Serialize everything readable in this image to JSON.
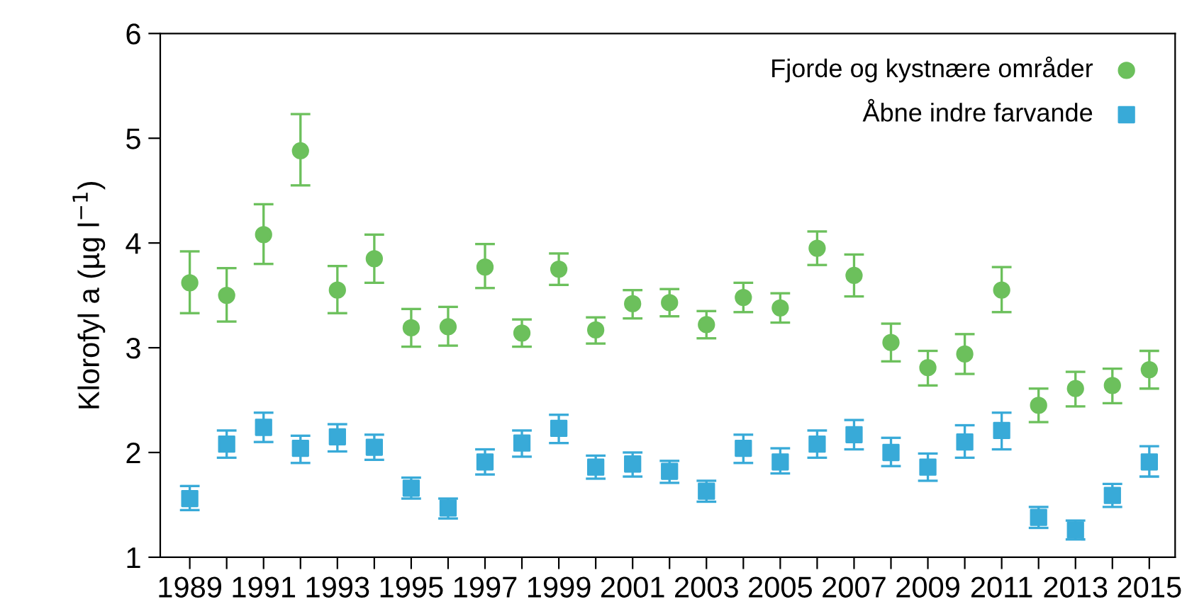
{
  "chart_data": {
    "type": "scatter",
    "ylabel": "Klorofyl a (µg l$^{−1}$)",
    "x": [
      1989,
      1990,
      1991,
      1992,
      1993,
      1994,
      1995,
      1996,
      1997,
      1998,
      1999,
      2000,
      2001,
      2002,
      2003,
      2004,
      2005,
      2006,
      2007,
      2008,
      2009,
      2010,
      2011,
      2012,
      2013,
      2014,
      2015
    ],
    "xlim": [
      1988.2,
      2015.7
    ],
    "xticks": [
      1989,
      {
        "value": 1990,
        "label": null
      },
      1991,
      {
        "value": 1992,
        "label": null
      },
      1993,
      {
        "value": 1994,
        "label": null
      },
      1995,
      {
        "value": 1996,
        "label": null
      },
      1997,
      {
        "value": 1998,
        "label": null
      },
      1999,
      {
        "value": 2000,
        "label": null
      },
      2001,
      {
        "value": 2002,
        "label": null
      },
      2003,
      {
        "value": 2004,
        "label": null
      },
      2005,
      {
        "value": 2006,
        "label": null
      },
      2007,
      {
        "value": 2008,
        "label": null
      },
      2009,
      {
        "value": 2010,
        "label": null
      },
      2011,
      {
        "value": 2012,
        "label": null
      },
      2013,
      {
        "value": 2014,
        "label": null
      },
      2015
    ],
    "ylim": [
      1,
      6
    ],
    "yticks": [
      1,
      2,
      3,
      4,
      5,
      6
    ],
    "grid": false,
    "legend": "top right",
    "series": [
      {
        "name": "Fjorde og kystnære områder",
        "color": "#6cc05c",
        "marker": "circle",
        "values": [
          3.62,
          3.5,
          4.08,
          4.88,
          3.55,
          3.85,
          3.19,
          3.2,
          3.77,
          3.14,
          3.75,
          3.17,
          3.42,
          3.43,
          3.22,
          3.48,
          3.38,
          3.95,
          3.69,
          3.05,
          2.81,
          2.94,
          3.55,
          2.45,
          2.61,
          2.64,
          2.79
        ],
        "errors": [
          [
            3.33,
            3.92
          ],
          [
            3.25,
            3.76
          ],
          [
            3.8,
            4.37
          ],
          [
            4.55,
            5.23
          ],
          [
            3.33,
            3.78
          ],
          [
            3.62,
            4.08
          ],
          [
            3.01,
            3.37
          ],
          [
            3.02,
            3.39
          ],
          [
            3.57,
            3.99
          ],
          [
            3.01,
            3.27
          ],
          [
            3.6,
            3.9
          ],
          [
            3.04,
            3.29
          ],
          [
            3.28,
            3.55
          ],
          [
            3.3,
            3.56
          ],
          [
            3.09,
            3.35
          ],
          [
            3.34,
            3.62
          ],
          [
            3.24,
            3.52
          ],
          [
            3.79,
            4.11
          ],
          [
            3.49,
            3.89
          ],
          [
            2.87,
            3.23
          ],
          [
            2.64,
            2.97
          ],
          [
            2.75,
            3.13
          ],
          [
            3.34,
            3.77
          ],
          [
            2.29,
            2.61
          ],
          [
            2.44,
            2.77
          ],
          [
            2.47,
            2.8
          ],
          [
            2.61,
            2.97
          ]
        ]
      },
      {
        "name": "Åbne indre farvande",
        "color": "#38aad8",
        "marker": "square",
        "values": [
          1.56,
          2.08,
          2.24,
          2.04,
          2.15,
          2.05,
          1.66,
          1.47,
          1.91,
          2.09,
          2.23,
          1.86,
          1.89,
          1.82,
          1.63,
          2.04,
          1.91,
          2.08,
          2.17,
          2.0,
          1.86,
          2.1,
          2.21,
          1.38,
          1.26,
          1.59,
          1.91
        ],
        "errors": [
          [
            1.45,
            1.68
          ],
          [
            1.95,
            2.21
          ],
          [
            2.1,
            2.38
          ],
          [
            1.9,
            2.16
          ],
          [
            2.01,
            2.27
          ],
          [
            1.93,
            2.17
          ],
          [
            1.56,
            1.76
          ],
          [
            1.37,
            1.56
          ],
          [
            1.79,
            2.03
          ],
          [
            1.96,
            2.21
          ],
          [
            2.09,
            2.36
          ],
          [
            1.75,
            1.97
          ],
          [
            1.77,
            2.0
          ],
          [
            1.71,
            1.92
          ],
          [
            1.53,
            1.73
          ],
          [
            1.9,
            2.17
          ],
          [
            1.8,
            2.04
          ],
          [
            1.95,
            2.21
          ],
          [
            2.03,
            2.31
          ],
          [
            1.87,
            2.14
          ],
          [
            1.73,
            1.99
          ],
          [
            1.95,
            2.26
          ],
          [
            2.03,
            2.38
          ],
          [
            1.28,
            1.48
          ],
          [
            1.17,
            1.35
          ],
          [
            1.48,
            1.7
          ],
          [
            1.77,
            2.06
          ]
        ]
      }
    ]
  }
}
